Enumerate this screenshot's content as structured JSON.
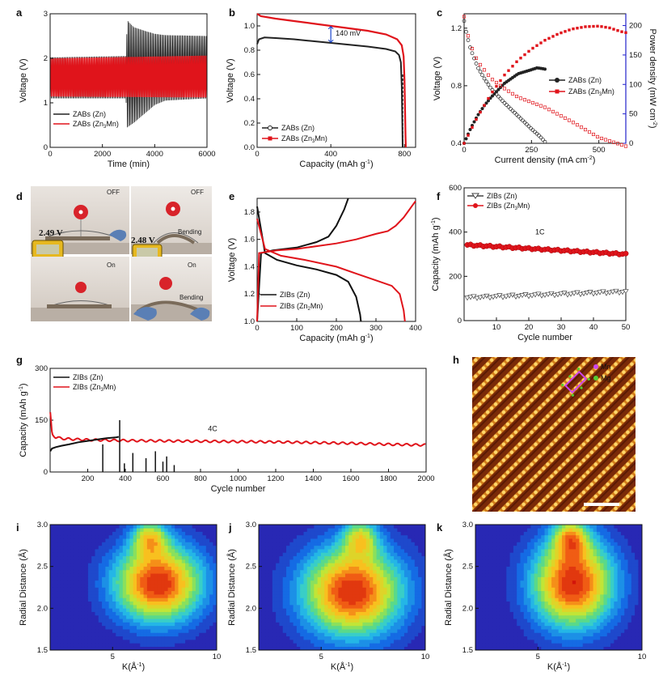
{
  "figure": {
    "panels": {
      "a": "a",
      "b": "b",
      "c": "c",
      "d": "d",
      "e": "e",
      "f": "f",
      "g": "g",
      "h": "h",
      "i": "i",
      "j": "j",
      "k": "k"
    },
    "photo": {
      "off_label": "OFF",
      "on_label": "On",
      "bending_label": "Bending",
      "voltage_flat": "2.49 V",
      "voltage_bent": "2.48 V"
    },
    "stem": {
      "legend": [
        "Mn",
        "Mg"
      ],
      "colors": {
        "mn": "#cc44ee",
        "mg": "#55cc33"
      }
    }
  },
  "chart_data": [
    {
      "id": "a",
      "type": "line",
      "xlabel": "Time (min)",
      "ylabel": "Voltage (V)",
      "xlim": [
        0,
        6000
      ],
      "ylim": [
        0,
        3
      ],
      "xticks": [
        0,
        2000,
        4000,
        6000
      ],
      "yticks": [
        0,
        1,
        2,
        3
      ],
      "series": [
        {
          "name": "ZABs (Zn)",
          "color": "#222222",
          "envelope": {
            "t": [
              0,
              2900,
              2950,
              3200,
              3600,
              4000,
              4400,
              6000
            ],
            "upper": [
              2.02,
              2.05,
              2.85,
              2.7,
              2.62,
              2.55,
              2.52,
              2.5
            ],
            "lower": [
              1.1,
              1.1,
              0.45,
              0.55,
              0.75,
              0.95,
              1.05,
              1.1
            ]
          }
        },
        {
          "name": "ZABs (Zn3Mn)",
          "color": "#e0141b",
          "envelope": {
            "t": [
              0,
              6000
            ],
            "upper": [
              2.0,
              2.06
            ],
            "lower": [
              1.14,
              1.12
            ]
          }
        }
      ]
    },
    {
      "id": "b",
      "type": "line",
      "xlabel": "Capacity (mAh g",
      "xlabel_sup": "-1",
      "xlabel_end": ")",
      "ylabel": "Voltage (V)",
      "xlim": [
        0,
        860
      ],
      "ylim": [
        0,
        1.1
      ],
      "xticks": [
        0,
        400,
        800
      ],
      "yticks": [
        0.0,
        0.2,
        0.4,
        0.6,
        0.8,
        1.0
      ],
      "annotation": "140 mV",
      "series": [
        {
          "name": "ZABs (Zn)",
          "color": "#222222",
          "x": [
            0,
            10,
            40,
            100,
            200,
            300,
            400,
            500,
            600,
            700,
            750,
            770,
            780,
            785,
            788,
            790
          ],
          "y": [
            0.85,
            0.89,
            0.905,
            0.9,
            0.89,
            0.875,
            0.86,
            0.845,
            0.83,
            0.81,
            0.79,
            0.76,
            0.7,
            0.5,
            0.2,
            0.0
          ]
        },
        {
          "name": "ZABs (Zn3Mn)",
          "color": "#e0141b",
          "x": [
            0,
            20,
            100,
            200,
            300,
            400,
            500,
            600,
            700,
            760,
            785,
            795,
            800,
            803,
            805,
            807
          ],
          "y": [
            1.1,
            1.08,
            1.06,
            1.04,
            1.02,
            1.0,
            0.98,
            0.96,
            0.93,
            0.89,
            0.84,
            0.75,
            0.55,
            0.3,
            0.1,
            0.0
          ]
        }
      ]
    },
    {
      "id": "c",
      "type": "line",
      "xlabel": "Current density (mA cm",
      "xlabel_sup": "-2",
      "xlabel_end": ")",
      "ylabel": "Voltage (V)",
      "y2label": "Power density (mW cm",
      "y2label_sup": "-2",
      "y2label_end": ")",
      "xlim": [
        0,
        600
      ],
      "ylim": [
        0.4,
        1.3
      ],
      "y2lim": [
        0,
        220
      ],
      "xticks": [
        0,
        250,
        500
      ],
      "yticks": [
        0.4,
        0.8,
        1.2
      ],
      "y2ticks": [
        0,
        50,
        100,
        150,
        200
      ],
      "series": [
        {
          "name": "ZABs (Zn)",
          "color": "#222222",
          "marker": "circle-open",
          "x": [
            0,
            10,
            25,
            50,
            75,
            100,
            150,
            200,
            250,
            280,
            300
          ],
          "y": [
            1.25,
            1.15,
            1.05,
            0.93,
            0.85,
            0.78,
            0.68,
            0.59,
            0.5,
            0.45,
            0.41
          ]
        },
        {
          "name": "ZABs (Zn)",
          "axis": "y2",
          "color": "#222222",
          "marker": "circle-filled",
          "x": [
            0,
            25,
            50,
            75,
            100,
            150,
            200,
            250,
            270,
            290,
            300
          ],
          "y": [
            0,
            26,
            47,
            64,
            78,
            102,
            118,
            125,
            128,
            127,
            126
          ]
        },
        {
          "name": "ZABs (Zn3Mn)",
          "color": "#e0141b",
          "marker": "square-open",
          "x": [
            0,
            10,
            25,
            50,
            100,
            150,
            200,
            300,
            400,
            500,
            600
          ],
          "y": [
            1.28,
            1.18,
            1.08,
            0.97,
            0.85,
            0.78,
            0.72,
            0.65,
            0.55,
            0.44,
            0.38
          ]
        },
        {
          "name": "ZABs (Zn3Mn)",
          "axis": "y2",
          "color": "#e0141b",
          "marker": "square-filled",
          "x": [
            0,
            50,
            100,
            150,
            200,
            250,
            300,
            350,
            400,
            450,
            500,
            540,
            580,
            600
          ],
          "y": [
            0,
            45,
            84,
            116,
            141,
            160,
            175,
            186,
            194,
            198,
            199,
            196,
            190,
            188
          ]
        }
      ]
    },
    {
      "id": "e",
      "type": "line",
      "xlabel": "Capacity (mAh g",
      "xlabel_sup": "-1",
      "xlabel_end": ")",
      "ylabel": "Voltage (V)",
      "xlim": [
        0,
        400
      ],
      "ylim": [
        1.0,
        1.9
      ],
      "xticks": [
        0,
        100,
        200,
        300,
        400
      ],
      "yticks": [
        1.0,
        1.2,
        1.4,
        1.6,
        1.8
      ],
      "series": [
        {
          "name": "ZIBs (Zn)",
          "color": "#111111",
          "x": [
            0,
            20,
            50,
            100,
            150,
            200,
            230,
            250,
            260,
            262
          ],
          "y": [
            1.84,
            1.5,
            1.45,
            1.41,
            1.38,
            1.34,
            1.29,
            1.18,
            1.05,
            1.0
          ],
          "charge_x": [
            0,
            10,
            40,
            100,
            150,
            180,
            200,
            220,
            230
          ],
          "charge_y": [
            1.0,
            1.5,
            1.52,
            1.54,
            1.58,
            1.62,
            1.7,
            1.82,
            1.9
          ]
        },
        {
          "name": "ZIBs (Zn2Mn)",
          "color": "#e0141b",
          "x": [
            0,
            20,
            60,
            120,
            200,
            250,
            300,
            340,
            360,
            370,
            373
          ],
          "y": [
            1.75,
            1.53,
            1.48,
            1.45,
            1.4,
            1.35,
            1.3,
            1.26,
            1.2,
            1.08,
            1.0
          ],
          "charge_x": [
            0,
            5,
            50,
            100,
            200,
            250,
            300,
            330,
            350,
            370,
            390,
            400
          ],
          "charge_y": [
            1.0,
            1.5,
            1.52,
            1.53,
            1.57,
            1.6,
            1.64,
            1.66,
            1.7,
            1.76,
            1.84,
            1.88
          ]
        }
      ]
    },
    {
      "id": "f",
      "type": "scatter",
      "xlabel": "Cycle number",
      "ylabel": "Capacity (mAh g",
      "ylabel_sup": "-1",
      "ylabel_end": ")",
      "xlim": [
        0,
        50
      ],
      "ylim": [
        0,
        600
      ],
      "xticks": [
        10,
        20,
        30,
        40,
        50
      ],
      "yticks": [
        0,
        200,
        400,
        600
      ],
      "annotation": "1C",
      "series": [
        {
          "name": "ZIBs (Zn)",
          "color": "#444444",
          "marker": "triangle-down-open",
          "start": 103,
          "end": 130
        },
        {
          "name": "ZIBs (Zn3Mn)",
          "color": "#e0141b",
          "marker": "circle-filled",
          "start": 342,
          "end": 300
        }
      ]
    },
    {
      "id": "g",
      "type": "line",
      "xlabel": "Cycle number",
      "ylabel": "Capacity (mAh g",
      "ylabel_sup": "-1",
      "ylabel_end": ")",
      "xlim": [
        0,
        2000
      ],
      "ylim": [
        0,
        300
      ],
      "xticks": [
        200,
        400,
        600,
        800,
        1000,
        1200,
        1400,
        1600,
        1800,
        2000
      ],
      "yticks": [
        0,
        150,
        300
      ],
      "annotation": "4C",
      "series": [
        {
          "name": "ZIBs (Zn)",
          "color": "#111111",
          "x": [
            1,
            10,
            30,
            60,
            100,
            150,
            200,
            250,
            300,
            350,
            365
          ],
          "y": [
            60,
            68,
            72,
            76,
            80,
            86,
            90,
            94,
            98,
            100,
            102
          ],
          "spikes": [
            [
              280,
              80
            ],
            [
              370,
              150
            ],
            [
              395,
              25
            ],
            [
              440,
              55
            ],
            [
              510,
              40
            ],
            [
              560,
              60
            ],
            [
              600,
              30
            ],
            [
              620,
              45
            ],
            [
              660,
              20
            ]
          ]
        },
        {
          "name": "ZIBs (Zn3Mn)",
          "color": "#e0141b",
          "x": [
            1,
            10,
            30,
            80,
            200,
            400,
            600,
            800,
            1000,
            1200,
            1400,
            1600,
            1800,
            2000
          ],
          "y": [
            170,
            110,
            100,
            96,
            93,
            91,
            90,
            89,
            88,
            87,
            85,
            83,
            80,
            78
          ]
        }
      ]
    },
    {
      "id": "i",
      "type": "heatmap",
      "xlabel": "K(Å",
      "xlabel_sup": "-1",
      "xlabel_end": ")",
      "ylabel": "Radial Distance (Å)",
      "xlim": [
        2,
        10
      ],
      "ylim": [
        1.5,
        3.0
      ],
      "xticks": [
        5,
        10
      ],
      "yticks": [
        1.5,
        2.0,
        2.5,
        3.0
      ],
      "peaks": [
        {
          "k": 7.2,
          "r": 2.3,
          "sk": 1.5,
          "sr": 0.33,
          "a": 1.0
        },
        {
          "k": 6.8,
          "r": 2.85,
          "sk": 0.6,
          "sr": 0.15,
          "a": 0.55
        }
      ]
    },
    {
      "id": "j",
      "type": "heatmap",
      "xlabel": "K(Å",
      "xlabel_sup": "-1",
      "xlabel_end": ")",
      "ylabel": "Radial Distance (Å)",
      "xlim": [
        2,
        10
      ],
      "ylim": [
        1.5,
        3.0
      ],
      "xticks": [
        5,
        10
      ],
      "yticks": [
        1.5,
        2.0,
        2.5,
        3.0
      ],
      "peaks": [
        {
          "k": 6.5,
          "r": 2.2,
          "sk": 1.7,
          "sr": 0.38,
          "a": 1.0
        },
        {
          "k": 6.9,
          "r": 2.85,
          "sk": 0.6,
          "sr": 0.16,
          "a": 0.5
        }
      ]
    },
    {
      "id": "k",
      "type": "heatmap",
      "xlabel": "K(Å",
      "xlabel_sup": "-1",
      "xlabel_end": ")",
      "ylabel": "Radial Distance (Å)",
      "xlim": [
        2,
        10
      ],
      "ylim": [
        1.5,
        3.0
      ],
      "xticks": [
        5,
        10
      ],
      "yticks": [
        1.5,
        2.0,
        2.5,
        3.0
      ],
      "peaks": [
        {
          "k": 6.7,
          "r": 2.3,
          "sk": 1.4,
          "sr": 0.38,
          "a": 1.0
        },
        {
          "k": 6.6,
          "r": 2.85,
          "sk": 0.6,
          "sr": 0.16,
          "a": 0.55
        }
      ]
    }
  ]
}
